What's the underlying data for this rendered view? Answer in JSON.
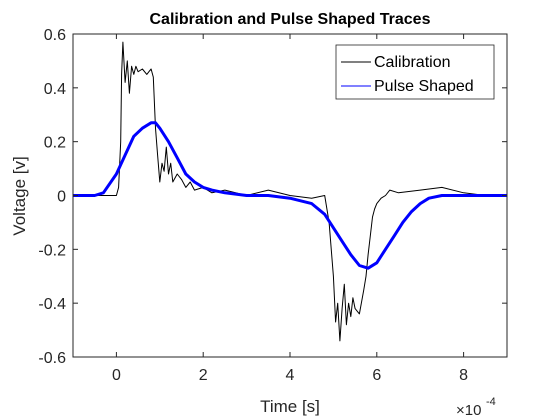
{
  "chart_data": {
    "type": "line",
    "title": "Calibration and Pulse Shaped Traces",
    "xlabel": "Time [s]",
    "ylabel": "Voltage [v]",
    "x_multiplier": "×10",
    "x_multiplier_exp": "-4",
    "xlim": [
      -1,
      9
    ],
    "ylim": [
      -0.6,
      0.6
    ],
    "xticks": [
      0,
      2,
      4,
      6,
      8
    ],
    "xtick_labels": [
      "0",
      "2",
      "4",
      "6",
      "8"
    ],
    "yticks": [
      -0.6,
      -0.4,
      -0.2,
      0,
      0.2,
      0.4,
      0.6
    ],
    "ytick_labels": [
      "-0.6",
      "-0.4",
      "-0.2",
      "0",
      "0.2",
      "0.4",
      "0.6"
    ],
    "grid": false,
    "legend_position": "top-right",
    "series": [
      {
        "name": "Calibration",
        "color": "#000000",
        "x": [
          -1,
          0,
          0.05,
          0.1,
          0.12,
          0.15,
          0.2,
          0.25,
          0.3,
          0.35,
          0.4,
          0.45,
          0.5,
          0.6,
          0.7,
          0.75,
          0.8,
          0.85,
          0.9,
          0.95,
          1.0,
          1.05,
          1.1,
          1.15,
          1.2,
          1.25,
          1.3,
          1.4,
          1.5,
          1.6,
          1.7,
          1.8,
          2.0,
          2.2,
          2.5,
          3.0,
          3.5,
          4.0,
          4.5,
          4.8,
          4.9,
          5.0,
          5.05,
          5.1,
          5.15,
          5.2,
          5.25,
          5.3,
          5.35,
          5.4,
          5.45,
          5.5,
          5.6,
          5.7,
          5.75,
          5.8,
          5.85,
          5.9,
          5.95,
          6.0,
          6.1,
          6.2,
          6.3,
          6.5,
          7.0,
          7.5,
          8.0,
          8.5,
          9.0
        ],
        "y": [
          0,
          0,
          0.03,
          0.2,
          0.45,
          0.57,
          0.42,
          0.5,
          0.38,
          0.48,
          0.45,
          0.48,
          0.46,
          0.47,
          0.45,
          0.46,
          0.47,
          0.44,
          0.25,
          0.15,
          0.05,
          0.12,
          0.09,
          0.18,
          0.08,
          0.12,
          0.05,
          0.08,
          0.06,
          0.03,
          0.05,
          0.02,
          0.03,
          0.01,
          0.02,
          0.0,
          0.02,
          0.0,
          -0.01,
          0.0,
          -0.1,
          -0.3,
          -0.47,
          -0.4,
          -0.54,
          -0.42,
          -0.33,
          -0.48,
          -0.4,
          -0.45,
          -0.38,
          -0.42,
          -0.44,
          -0.35,
          -0.3,
          -0.22,
          -0.15,
          -0.08,
          -0.05,
          -0.03,
          -0.01,
          0.0,
          0.02,
          0.01,
          0.02,
          0.03,
          0.01,
          0.0,
          0.0
        ]
      },
      {
        "name": "Pulse Shaped",
        "color": "#0000ff",
        "x": [
          -1,
          -0.5,
          -0.3,
          0,
          0.2,
          0.4,
          0.6,
          0.8,
          0.9,
          1.0,
          1.2,
          1.4,
          1.6,
          1.8,
          2.0,
          2.2,
          2.5,
          3.0,
          3.5,
          4.0,
          4.5,
          4.8,
          5.0,
          5.2,
          5.4,
          5.6,
          5.8,
          6.0,
          6.2,
          6.4,
          6.6,
          6.8,
          7.0,
          7.2,
          7.5,
          8.0,
          8.5,
          9.0
        ],
        "y": [
          0,
          0,
          0.01,
          0.08,
          0.15,
          0.22,
          0.25,
          0.27,
          0.27,
          0.25,
          0.2,
          0.14,
          0.08,
          0.05,
          0.03,
          0.02,
          0.01,
          0.0,
          0.0,
          -0.01,
          -0.03,
          -0.07,
          -0.12,
          -0.17,
          -0.22,
          -0.26,
          -0.27,
          -0.25,
          -0.2,
          -0.15,
          -0.1,
          -0.06,
          -0.03,
          -0.01,
          0.0,
          0.0,
          0.0,
          0.0
        ]
      }
    ]
  }
}
